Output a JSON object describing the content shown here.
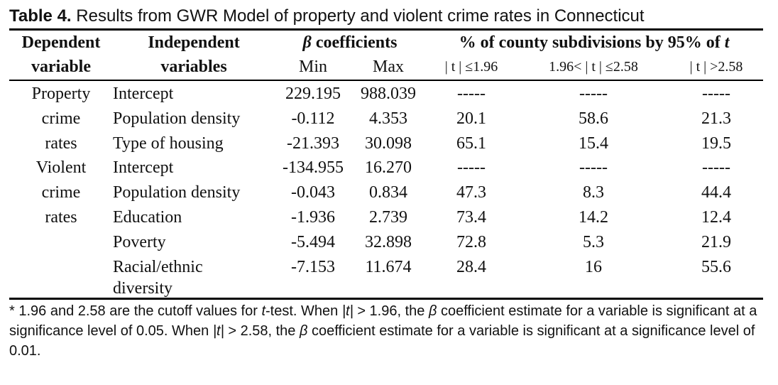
{
  "caption": {
    "label": "Table 4.",
    "text": " Results from GWR Model of property and violent crime rates in Connecticut"
  },
  "headers": {
    "dependent": [
      "Dependent",
      "variable"
    ],
    "independent": [
      "Independent",
      "variables"
    ],
    "beta_symbol": "β",
    "beta_text": " coefficients",
    "pct": "% of county subdivisions by 95% of ",
    "pct_t": "t",
    "min": "Min",
    "max": "Max",
    "t1": "| t | ≤1.96",
    "t2": "1.96< | t | ≤2.58",
    "t3": "| t | >2.58"
  },
  "groups": [
    {
      "dependent": [
        "Property",
        "crime",
        "rates"
      ],
      "rows": [
        {
          "var": "Intercept",
          "min": "229.195",
          "max": "988.039",
          "p1": "-----",
          "p2": "-----",
          "p3": "-----"
        },
        {
          "var": "Population density",
          "min": "-0.112",
          "max": "4.353",
          "p1": "20.1",
          "p2": "58.6",
          "p3": "21.3"
        },
        {
          "var": "Type of housing",
          "min": "-21.393",
          "max": "30.098",
          "p1": "65.1",
          "p2": "15.4",
          "p3": "19.5"
        }
      ]
    },
    {
      "dependent": [
        "Violent",
        "crime",
        "rates"
      ],
      "rows": [
        {
          "var": "Intercept",
          "min": "-134.955",
          "max": "16.270",
          "p1": "-----",
          "p2": "-----",
          "p3": "-----"
        },
        {
          "var": "Population density",
          "min": "-0.043",
          "max": "0.834",
          "p1": "47.3",
          "p2": "8.3",
          "p3": "44.4"
        },
        {
          "var": "Education",
          "min": "-1.936",
          "max": "2.739",
          "p1": "73.4",
          "p2": "14.2",
          "p3": "12.4"
        },
        {
          "var": "Poverty",
          "min": "-5.494",
          "max": "32.898",
          "p1": "72.8",
          "p2": "5.3",
          "p3": "21.9"
        },
        {
          "var": "Racial/ethnic",
          "min": "-7.153",
          "max": "11.674",
          "p1": "28.4",
          "p2": "16",
          "p3": "55.6"
        },
        {
          "var": "diversity",
          "min": "",
          "max": "",
          "p1": "",
          "p2": "",
          "p3": ""
        }
      ]
    }
  ],
  "footnote": {
    "a": "* 1.96 and 2.58 are the cutoff values for ",
    "b": "t",
    "c": "-test. When ",
    "d": "|t|",
    "e": " > 1.96, the ",
    "f": "β",
    "g": " coefficient estimate for a variable is significant at a significance level of 0.05. When ",
    "h": "|t|",
    "i": " > 2.58, the ",
    "j": "β",
    "k": " coefficient estimate for a variable is significant at a significance level of 0.01."
  }
}
